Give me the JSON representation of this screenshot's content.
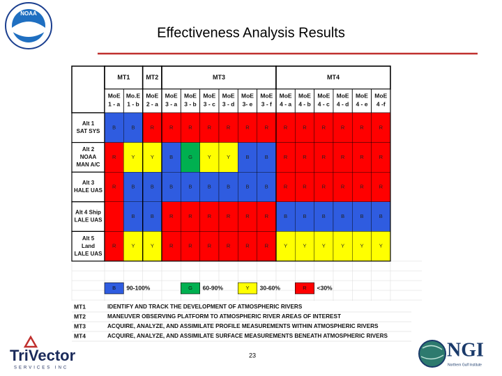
{
  "title": "Effectiveness Analysis Results",
  "page_number": "23",
  "logos": {
    "noaa": "NOAA",
    "trivector": "TriVector",
    "trivector_sub": "SERVICES INC",
    "ngi": "NGI",
    "ngi_sub": "Northern Gulf Institute"
  },
  "table": {
    "colors": {
      "B": "#2f5ce0",
      "R": "#ff0000",
      "Y": "#ffff00",
      "G": "#00b050"
    },
    "groups": [
      {
        "label": "MT1",
        "span": 2
      },
      {
        "label": "MT2",
        "span": 1
      },
      {
        "label": "MT3",
        "span": 6
      },
      {
        "label": "MT4",
        "span": 6
      }
    ],
    "columns": [
      [
        "MoE",
        "1 - a"
      ],
      [
        "Mo.E",
        "1 - b"
      ],
      [
        "MoE",
        "2 - a"
      ],
      [
        "MoE",
        "3 - a"
      ],
      [
        "MoE",
        "3 - b"
      ],
      [
        "MoE",
        "3 - c"
      ],
      [
        "MoE",
        "3 - d"
      ],
      [
        "MoE",
        "3- e"
      ],
      [
        "MoE",
        "3 - f"
      ],
      [
        "MoE",
        "4 - a"
      ],
      [
        "MoE",
        "4 - b"
      ],
      [
        "MoE",
        "4 - c"
      ],
      [
        "MoE",
        "4 - d"
      ],
      [
        "MoE",
        "4 - e"
      ],
      [
        "MoE",
        "4 -f"
      ]
    ],
    "rows": [
      {
        "label": [
          "Alt 1",
          "SAT SYS"
        ],
        "cells": [
          "B",
          "B",
          "R",
          "R",
          "R",
          "R",
          "R",
          "R",
          "R",
          "R",
          "R",
          "R",
          "R",
          "R",
          "R"
        ]
      },
      {
        "label": [
          "Alt 2",
          "NOAA",
          "MAN A/C"
        ],
        "cells": [
          "R",
          "Y",
          "Y",
          "B",
          "G",
          "Y",
          "Y",
          "B",
          "B",
          "R",
          "R",
          "R",
          "R",
          "R",
          "R"
        ]
      },
      {
        "label": [
          "Alt 3",
          "HALE UAS"
        ],
        "cells": [
          "R",
          "B",
          "B",
          "B",
          "B",
          "B",
          "B",
          "B",
          "B",
          "R",
          "R",
          "R",
          "R",
          "R",
          "R"
        ]
      },
      {
        "label": [
          "Alt 4 Ship",
          "LALE UAS"
        ],
        "cells": [
          {
            "fill": "#ff0000"
          },
          "B",
          "B",
          "R",
          "R",
          "R",
          "R",
          "R",
          "R",
          "B",
          "B",
          "B",
          "B",
          "B",
          "B"
        ]
      },
      {
        "label": [
          "Alt 5",
          "Land",
          "LALE UAS"
        ],
        "cells": [
          "R",
          "Y",
          "Y",
          "R",
          "R",
          "R",
          "R",
          "R",
          "R",
          "Y",
          "Y",
          "Y",
          "Y",
          "Y",
          "Y"
        ]
      }
    ],
    "legend": [
      {
        "code": "B",
        "text": "90-100%"
      },
      {
        "code": "G",
        "text": "60-90%"
      },
      {
        "code": "Y",
        "text": "30-60%"
      },
      {
        "code": "R",
        "text": "<30%"
      }
    ],
    "definitions": [
      {
        "term": "MT1",
        "text": "IDENTIFY AND TRACK THE DEVELOPMENT OF ATMOSPHERIC RIVERS"
      },
      {
        "term": "MT2",
        "text": "MANEUVER OBSERVING PLATFORM TO ATMOSPHERIC RIVER AREAS OF INTEREST"
      },
      {
        "term": "MT3",
        "text": "ACQUIRE, ANALYZE, AND ASSIMILATE PROFILE MEASUREMENTS WITHIN ATMOSPHERIC RIVERS"
      },
      {
        "term": "MT4",
        "text": "ACQUIRE, ANALYZE, AND ASSIMILATE SURFACE MEASUREMENTS BENEATH ATMOSPHERIC RIVERS"
      }
    ]
  }
}
